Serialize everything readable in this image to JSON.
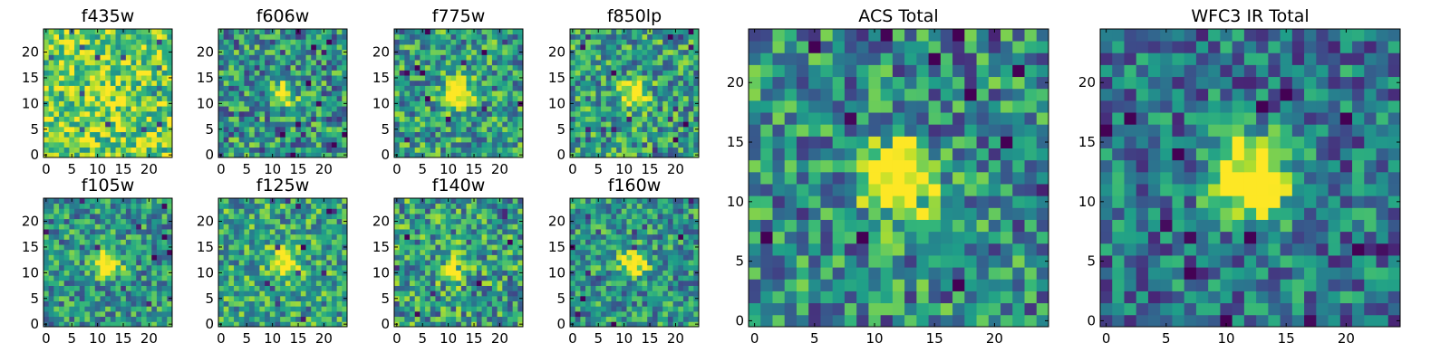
{
  "chart_data": [
    {
      "type": "heatmap",
      "title": "f435w",
      "xticks": [
        "0",
        "5",
        "10",
        "15",
        "20"
      ],
      "yticks": [
        "0",
        "5",
        "10",
        "15",
        "20"
      ],
      "xlim": [
        0,
        24
      ],
      "ylim": [
        0,
        24
      ],
      "grid": false,
      "colormap": "viridis",
      "source_center": [
        12,
        12
      ],
      "source_peak": 0.08
    },
    {
      "type": "heatmap",
      "title": "f606w",
      "xticks": [
        "0",
        "5",
        "10",
        "15",
        "20"
      ],
      "yticks": [
        "0",
        "5",
        "10",
        "15",
        "20"
      ],
      "xlim": [
        0,
        24
      ],
      "ylim": [
        0,
        24
      ],
      "grid": false,
      "colormap": "viridis",
      "source_center": [
        12,
        12
      ],
      "source_peak": 0.5
    },
    {
      "type": "heatmap",
      "title": "f775w",
      "xticks": [
        "0",
        "5",
        "10",
        "15",
        "20"
      ],
      "yticks": [
        "0",
        "5",
        "10",
        "15",
        "20"
      ],
      "xlim": [
        0,
        24
      ],
      "ylim": [
        0,
        24
      ],
      "grid": false,
      "colormap": "viridis",
      "source_center": [
        12,
        12
      ],
      "source_peak": 0.55
    },
    {
      "type": "heatmap",
      "title": "f850lp",
      "xticks": [
        "0",
        "5",
        "10",
        "15",
        "20"
      ],
      "yticks": [
        "0",
        "5",
        "10",
        "15",
        "20"
      ],
      "xlim": [
        0,
        24
      ],
      "ylim": [
        0,
        24
      ],
      "grid": false,
      "colormap": "viridis",
      "source_center": [
        12,
        12
      ],
      "source_peak": 0.5
    },
    {
      "type": "heatmap",
      "title": "f105w",
      "xticks": [
        "0",
        "5",
        "10",
        "15",
        "20"
      ],
      "yticks": [
        "0",
        "5",
        "10",
        "15",
        "20"
      ],
      "xlim": [
        0,
        24
      ],
      "ylim": [
        0,
        24
      ],
      "grid": false,
      "colormap": "viridis",
      "source_center": [
        12,
        12
      ],
      "source_peak": 0.6
    },
    {
      "type": "heatmap",
      "title": "f125w",
      "xticks": [
        "0",
        "5",
        "10",
        "15",
        "20"
      ],
      "yticks": [
        "0",
        "5",
        "10",
        "15",
        "20"
      ],
      "xlim": [
        0,
        24
      ],
      "ylim": [
        0,
        24
      ],
      "grid": false,
      "colormap": "viridis",
      "source_center": [
        12,
        12
      ],
      "source_peak": 0.55
    },
    {
      "type": "heatmap",
      "title": "f140w",
      "xticks": [
        "0",
        "5",
        "10",
        "15",
        "20"
      ],
      "yticks": [
        "0",
        "5",
        "10",
        "15",
        "20"
      ],
      "xlim": [
        0,
        24
      ],
      "ylim": [
        0,
        24
      ],
      "grid": false,
      "colormap": "viridis",
      "source_center": [
        11,
        11
      ],
      "source_peak": 0.55
    },
    {
      "type": "heatmap",
      "title": "f160w",
      "xticks": [
        "0",
        "5",
        "10",
        "15",
        "20"
      ],
      "yticks": [
        "0",
        "5",
        "10",
        "15",
        "20"
      ],
      "xlim": [
        0,
        24
      ],
      "ylim": [
        0,
        24
      ],
      "grid": false,
      "colormap": "viridis",
      "source_center": [
        12,
        12
      ],
      "source_peak": 0.55
    },
    {
      "type": "heatmap",
      "title": "ACS Total",
      "xticks": [
        "0",
        "5",
        "10",
        "15",
        "20"
      ],
      "yticks": [
        "0",
        "5",
        "10",
        "15",
        "20"
      ],
      "xlim": [
        0,
        24
      ],
      "ylim": [
        0,
        24
      ],
      "grid": false,
      "colormap": "viridis",
      "source_center": [
        12,
        12
      ],
      "source_peak": 0.65
    },
    {
      "type": "heatmap",
      "title": "WFC3 IR Total",
      "xticks": [
        "0",
        "5",
        "10",
        "15",
        "20"
      ],
      "yticks": [
        "0",
        "5",
        "10",
        "15",
        "20"
      ],
      "xlim": [
        0,
        24
      ],
      "ylim": [
        0,
        24
      ],
      "grid": false,
      "colormap": "viridis",
      "source_center": [
        12,
        12
      ],
      "source_peak": 0.7
    }
  ]
}
